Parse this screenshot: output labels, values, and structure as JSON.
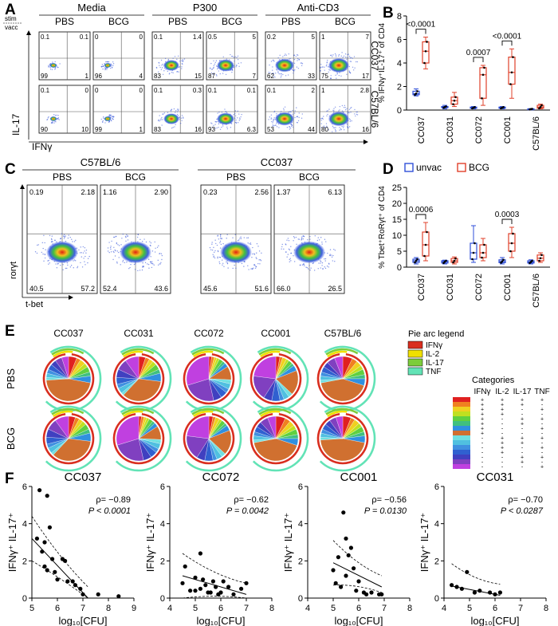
{
  "panels": {
    "A": {
      "label": "A",
      "group_headers": [
        "Media",
        "P300",
        "Anti-CD3"
      ],
      "sub_headers": [
        "PBS",
        "BCG"
      ],
      "stim_label": "stim",
      "vacc_label": "vacc",
      "y_axis": "IL-17",
      "x_axis": "IFNγ",
      "row_labels": [
        "CC037",
        "C57BL/6"
      ],
      "rows": [
        [
          {
            "tl": "0.1",
            "tr": "0.1",
            "bl": "99",
            "br": "1"
          },
          {
            "tl": "0",
            "tr": "0",
            "bl": "96",
            "br": "4"
          },
          {
            "tl": "0.1",
            "tr": "1.4",
            "bl": "83",
            "br": "15"
          },
          {
            "tl": "0.5",
            "tr": "5",
            "bl": "87",
            "br": "7"
          },
          {
            "tl": "0.2",
            "tr": "5",
            "bl": "62",
            "br": "33"
          },
          {
            "tl": "1",
            "tr": "7",
            "bl": "75",
            "br": "17"
          }
        ],
        [
          {
            "tl": "0.1",
            "tr": "0",
            "bl": "90",
            "br": "10"
          },
          {
            "tl": "0",
            "tr": "0",
            "bl": "99",
            "br": "1"
          },
          {
            "tl": "0.1",
            "tr": "0.3",
            "bl": "83",
            "br": "16"
          },
          {
            "tl": "0.1",
            "tr": "0.1",
            "bl": "93",
            "br": "6.3"
          },
          {
            "tl": "0.1",
            "tr": "2",
            "bl": "53",
            "br": "44"
          },
          {
            "tl": "1",
            "tr": "2.8",
            "bl": "80",
            "br": "16"
          }
        ]
      ]
    },
    "B": {
      "label": "B",
      "ylabel": "% IFNγ⁺IL-17⁺ of CD4",
      "yticks": [
        "0",
        "2",
        "4",
        "6",
        "8"
      ],
      "categories": [
        "CC037",
        "CC031",
        "CC072",
        "CC001",
        "C57BL/6"
      ],
      "pvalues": [
        "<0.0001",
        "0.0007",
        "<0.0001"
      ]
    },
    "C": {
      "label": "C",
      "group_headers": [
        "C57BL/6",
        "CC037"
      ],
      "sub_headers": [
        "PBS",
        "BCG"
      ],
      "y_axis": "rorγt",
      "x_axis": "t-bet",
      "plots": [
        {
          "tl": "0.19",
          "tr": "2.18",
          "bl": "40.5",
          "br": "57.2"
        },
        {
          "tl": "1.16",
          "tr": "2.90",
          "bl": "52.4",
          "br": "43.6"
        },
        {
          "tl": "0.23",
          "tr": "2.56",
          "bl": "45.6",
          "br": "51.6"
        },
        {
          "tl": "1.37",
          "tr": "6.13",
          "bl": "66.0",
          "br": "26.5"
        }
      ]
    },
    "D": {
      "label": "D",
      "legend": [
        "unvac",
        "BCG"
      ],
      "ylabel": "% Tbet⁺RoRγt⁺ of CD4",
      "yticks": [
        "0",
        "5",
        "10",
        "15",
        "20",
        "25"
      ],
      "categories": [
        "CC037",
        "CC031",
        "CC072",
        "CC001",
        "C57BL/6"
      ],
      "pvalues": [
        "0.0006",
        "0.0003"
      ]
    },
    "E": {
      "label": "E",
      "strains": [
        "CC037",
        "CC031",
        "CC072",
        "CC001",
        "C57BL/6"
      ],
      "row_labels": [
        "PBS",
        "BCG"
      ],
      "legend_title": "Pie arc legend",
      "legend_items": [
        "IFNγ",
        "IL-2",
        "IL-17",
        "TNF"
      ],
      "categories_title": "Categories",
      "category_headers": [
        "IFNγ",
        "IL-2",
        "IL-17",
        "TNF"
      ],
      "category_rows": [
        [
          "+",
          "+",
          "+",
          "+"
        ],
        [
          "+",
          "+",
          "+",
          "-"
        ],
        [
          "+",
          "+",
          "-",
          "+"
        ],
        [
          "+",
          "+",
          "-",
          "-"
        ],
        [
          "+",
          "-",
          "+",
          "+"
        ],
        [
          "+",
          "-",
          "+",
          "-"
        ],
        [
          "+",
          "-",
          "-",
          "+"
        ],
        [
          "+",
          "-",
          "-",
          "-"
        ],
        [
          "-",
          "+",
          "+",
          "+"
        ],
        [
          "-",
          "+",
          "+",
          "-"
        ],
        [
          "-",
          "+",
          "-",
          "+"
        ],
        [
          "-",
          "+",
          "-",
          "-"
        ],
        [
          "-",
          "-",
          "+",
          "+"
        ],
        [
          "-",
          "-",
          "+",
          "-"
        ],
        [
          "-",
          "-",
          "-",
          "+"
        ]
      ]
    },
    "F": {
      "label": "F",
      "ylabel": "IFNγ⁺ IL-17⁺",
      "xlabel": "log₁₀[CFU]",
      "plots": [
        {
          "title": "CC037",
          "rho": "ρ= −0.89",
          "p": "P < 0.0001"
        },
        {
          "title": "CC072",
          "rho": "ρ= −0.62",
          "p": "P = 0.0042"
        },
        {
          "title": "CC001",
          "rho": "ρ= −0.56",
          "p": "P = 0.0130"
        },
        {
          "title": "CC031",
          "rho": "ρ= −0.70",
          "p": "P < 0.0287"
        }
      ]
    }
  },
  "colors": {
    "unvac": "#2f4fd8",
    "bcg": "#e0402a",
    "arc_ifng": "#d92e1f",
    "arc_il2": "#f0e000",
    "arc_il17": "#7ccd3a",
    "arc_tnf": "#62e3b6",
    "category_swatches": [
      "#e02020",
      "#f08020",
      "#f0d020",
      "#c0e020",
      "#60d040",
      "#40c080",
      "#3090e0",
      "#d07030",
      "#70e0e0",
      "#50c0e0",
      "#4090e0",
      "#3060d0",
      "#4040c0",
      "#8040c0",
      "#c040e0"
    ]
  },
  "chart_data": [
    {
      "type": "box",
      "panel": "B",
      "ylabel": "% IFNγ⁺IL-17⁺ of CD4",
      "ylim": [
        0,
        8
      ],
      "categories": [
        "CC037",
        "CC031",
        "CC072",
        "CC001",
        "C57BL/6"
      ],
      "series": [
        {
          "name": "unvac",
          "boxes": [
            {
              "min": 1.2,
              "q1": 1.3,
              "median": 1.4,
              "q3": 1.6,
              "max": 1.8
            },
            {
              "min": 0.1,
              "q1": 0.2,
              "median": 0.25,
              "q3": 0.3,
              "max": 0.4
            },
            {
              "min": 0.1,
              "q1": 0.15,
              "median": 0.2,
              "q3": 0.25,
              "max": 0.3
            },
            {
              "min": 0.1,
              "q1": 0.15,
              "median": 0.2,
              "q3": 0.25,
              "max": 0.3
            },
            {
              "min": 0.02,
              "q1": 0.05,
              "median": 0.08,
              "q3": 0.1,
              "max": 0.12
            }
          ]
        },
        {
          "name": "BCG",
          "boxes": [
            {
              "min": 3.5,
              "q1": 4.0,
              "median": 5.0,
              "q3": 5.8,
              "max": 6.2
            },
            {
              "min": 0.3,
              "q1": 0.5,
              "median": 0.8,
              "q3": 1.1,
              "max": 1.5
            },
            {
              "min": 0.4,
              "q1": 1.0,
              "median": 3.0,
              "q3": 3.6,
              "max": 3.8
            },
            {
              "min": 1.0,
              "q1": 2.2,
              "median": 3.2,
              "q3": 4.5,
              "max": 5.2
            },
            {
              "min": 0.1,
              "q1": 0.15,
              "median": 0.25,
              "q3": 0.4,
              "max": 0.5
            }
          ]
        }
      ],
      "comparisons": [
        {
          "category": "CC037",
          "p": "<0.0001"
        },
        {
          "category": "CC072",
          "p": "0.0007"
        },
        {
          "category": "CC001",
          "p": "<0.0001"
        }
      ]
    },
    {
      "type": "box",
      "panel": "D",
      "ylabel": "% Tbet⁺RoRγt⁺ of CD4",
      "ylim": [
        0,
        25
      ],
      "categories": [
        "CC037",
        "CC031",
        "CC072",
        "CC001",
        "C57BL/6"
      ],
      "series": [
        {
          "name": "unvac",
          "boxes": [
            {
              "min": 1.0,
              "q1": 1.5,
              "median": 2.0,
              "q3": 2.5,
              "max": 3.0
            },
            {
              "min": 1.0,
              "q1": 1.3,
              "median": 1.7,
              "q3": 2.0,
              "max": 2.2
            },
            {
              "min": 1.5,
              "q1": 2.5,
              "median": 4.5,
              "q3": 7.5,
              "max": 13.0
            },
            {
              "min": 1.0,
              "q1": 1.4,
              "median": 1.8,
              "q3": 2.3,
              "max": 3.0
            },
            {
              "min": 1.0,
              "q1": 1.3,
              "median": 1.6,
              "q3": 2.0,
              "max": 2.3
            }
          ]
        },
        {
          "name": "BCG",
          "boxes": [
            {
              "min": 2.0,
              "q1": 3.5,
              "median": 7.0,
              "q3": 11.0,
              "max": 14.0
            },
            {
              "min": 1.0,
              "q1": 1.5,
              "median": 2.0,
              "q3": 2.7,
              "max": 3.2
            },
            {
              "min": 2.0,
              "q1": 3.0,
              "median": 4.5,
              "q3": 7.0,
              "max": 9.0
            },
            {
              "min": 3.0,
              "q1": 5.0,
              "median": 7.5,
              "q3": 10.5,
              "max": 12.5
            },
            {
              "min": 1.5,
              "q1": 2.0,
              "median": 2.8,
              "q3": 3.8,
              "max": 4.5
            }
          ]
        }
      ],
      "comparisons": [
        {
          "category": "CC037",
          "p": "0.0006"
        },
        {
          "category": "CC001",
          "p": "0.0003"
        }
      ]
    },
    {
      "type": "scatter",
      "panel": "F",
      "title": "CC037",
      "xlabel": "log₁₀[CFU]",
      "ylabel": "IFNγ⁺ IL-17⁺",
      "xlim": [
        5,
        9
      ],
      "ylim": [
        0,
        6
      ],
      "x": [
        5.2,
        5.3,
        5.4,
        5.5,
        5.5,
        5.6,
        5.6,
        5.7,
        5.8,
        5.9,
        6.0,
        6.2,
        6.3,
        6.4,
        6.6,
        6.7,
        6.9,
        7.0,
        7.6,
        8.4
      ],
      "y": [
        3.2,
        5.8,
        2.5,
        3.0,
        1.7,
        1.5,
        5.5,
        3.8,
        2.1,
        1.4,
        1.0,
        2.1,
        2.0,
        0.9,
        0.9,
        0.7,
        0.5,
        0.2,
        0.2,
        0.1
      ],
      "fit_line": [
        [
          5.0,
          3.2
        ],
        [
          7.2,
          0.0
        ]
      ]
    },
    {
      "type": "scatter",
      "panel": "F",
      "title": "CC072",
      "xlabel": "log₁₀[CFU]",
      "ylabel": "IFNγ⁺ IL-17⁺",
      "xlim": [
        4,
        8
      ],
      "ylim": [
        0,
        6
      ],
      "x": [
        4.5,
        4.6,
        4.8,
        5.0,
        5.0,
        5.2,
        5.2,
        5.3,
        5.4,
        5.5,
        5.6,
        5.7,
        5.8,
        5.9,
        6.0,
        6.1,
        6.3,
        6.5,
        6.8,
        7.0
      ],
      "y": [
        0.8,
        1.7,
        0.4,
        1.1,
        0.4,
        2.4,
        0.5,
        1.0,
        0.7,
        0.3,
        0.3,
        0.9,
        0.6,
        0.2,
        0.3,
        0.9,
        0.6,
        0.2,
        0.5,
        0.8
      ],
      "fit_line": [
        [
          4.5,
          1.2
        ],
        [
          7.0,
          0.2
        ]
      ]
    },
    {
      "type": "scatter",
      "panel": "F",
      "title": "CC001",
      "xlabel": "log₁₀[CFU]",
      "ylabel": "IFNγ⁺ IL-17⁺",
      "xlim": [
        4,
        8
      ],
      "ylim": [
        0,
        6
      ],
      "x": [
        5.0,
        5.1,
        5.2,
        5.3,
        5.4,
        5.5,
        5.5,
        5.6,
        5.7,
        5.8,
        5.9,
        6.0,
        6.2,
        6.3,
        6.5,
        6.8,
        6.9
      ],
      "y": [
        1.5,
        0.8,
        2.2,
        0.6,
        4.6,
        1.2,
        3.2,
        2.3,
        2.7,
        1.6,
        0.4,
        0.9,
        0.3,
        0.2,
        0.3,
        0.2,
        0.2
      ],
      "fit_line": [
        [
          5.0,
          1.9
        ],
        [
          6.9,
          0.6
        ]
      ]
    },
    {
      "type": "scatter",
      "panel": "F",
      "title": "CC031",
      "xlabel": "log₁₀[CFU]",
      "ylabel": "IFNγ⁺ IL-17⁺",
      "xlim": [
        4,
        8
      ],
      "ylim": [
        0,
        6
      ],
      "x": [
        4.3,
        4.5,
        4.7,
        4.9,
        5.2,
        5.4,
        5.8,
        6.0,
        6.2
      ],
      "y": [
        0.7,
        0.6,
        0.5,
        1.4,
        0.3,
        0.4,
        0.3,
        0.2,
        0.3
      ],
      "fit_line": [
        [
          4.3,
          0.65
        ],
        [
          6.2,
          0.15
        ]
      ]
    }
  ]
}
